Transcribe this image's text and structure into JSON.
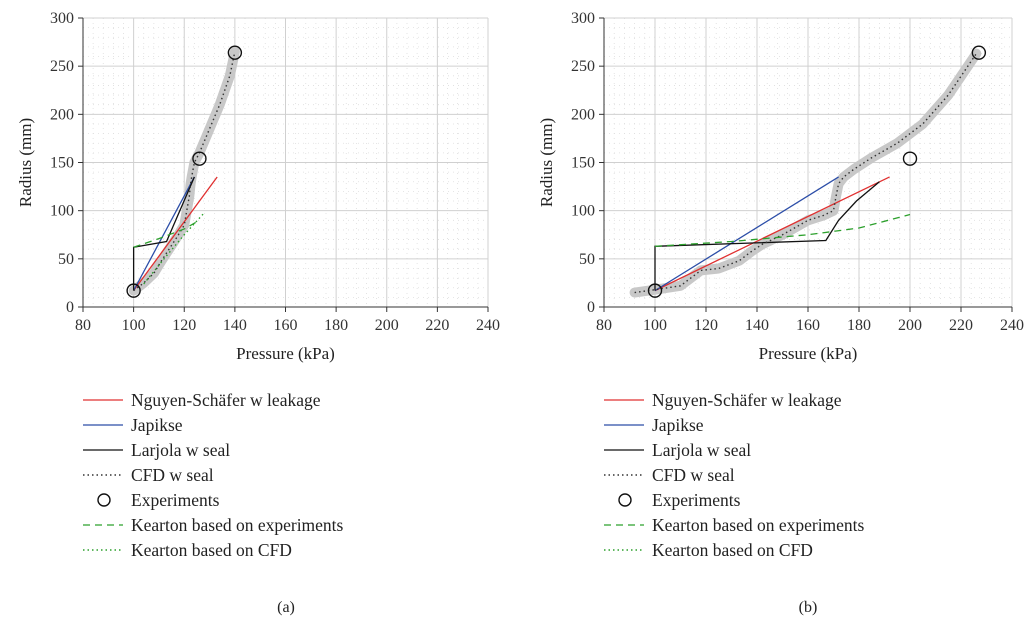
{
  "chart_data": [
    {
      "panel": "(a)",
      "type": "line",
      "xlabel": "Pressure (kPa)",
      "ylabel": "Radius (mm)",
      "xlim": [
        80,
        240
      ],
      "ylim": [
        0,
        300
      ],
      "xticks": [
        80,
        100,
        120,
        140,
        160,
        180,
        200,
        220,
        240
      ],
      "yticks": [
        0,
        50,
        100,
        150,
        200,
        250,
        300
      ],
      "grid": true,
      "legend_position": "below",
      "series": [
        {
          "name": "Nguyen-Schäfer w leakage",
          "style": "solid",
          "color": "#e03030",
          "x": [
            100,
            133
          ],
          "y": [
            17,
            135
          ]
        },
        {
          "name": "Japikse",
          "style": "solid",
          "color": "#2c4ea8",
          "x": [
            100,
            124
          ],
          "y": [
            17,
            135
          ]
        },
        {
          "name": "Larjola w seal",
          "style": "solid",
          "color": "#111111",
          "x": [
            100,
            100,
            113,
            124
          ],
          "y": [
            17,
            62,
            68,
            135
          ]
        },
        {
          "name": "CFD w seal",
          "style": "dotted",
          "color": "#333333",
          "x": [
            100,
            104,
            108,
            111,
            114,
            117,
            120,
            121,
            122,
            122.5,
            123,
            124,
            126,
            130,
            134,
            138,
            140
          ],
          "y": [
            17,
            25,
            35,
            48,
            60,
            72,
            85,
            100,
            115,
            128,
            136,
            150,
            160,
            185,
            210,
            240,
            265
          ]
        },
        {
          "name": "Experiments",
          "style": "marker",
          "color": "#111111",
          "x": [
            100,
            126,
            140
          ],
          "y": [
            17,
            154,
            264
          ]
        },
        {
          "name": "Kearton based on experiments",
          "style": "dashed",
          "color": "#2ca02c",
          "x": [
            100,
            110,
            120,
            126
          ],
          "y": [
            62,
            71,
            81,
            90
          ]
        },
        {
          "name": "Kearton based on CFD",
          "style": "dotted",
          "color": "#2ca02c",
          "x": [
            104,
            112,
            120,
            128
          ],
          "y": [
            24,
            50,
            75,
            98
          ]
        }
      ]
    },
    {
      "panel": "(b)",
      "type": "line",
      "xlabel": "Pressure (kPa)",
      "ylabel": "Radius (mm)",
      "xlim": [
        80,
        240
      ],
      "ylim": [
        0,
        300
      ],
      "xticks": [
        80,
        100,
        120,
        140,
        160,
        180,
        200,
        220,
        240
      ],
      "yticks": [
        0,
        50,
        100,
        150,
        200,
        250,
        300
      ],
      "grid": true,
      "legend_position": "below",
      "series": [
        {
          "name": "Nguyen-Schäfer w leakage",
          "style": "solid",
          "color": "#e03030",
          "x": [
            100,
            192
          ],
          "y": [
            17,
            135
          ]
        },
        {
          "name": "Japikse",
          "style": "solid",
          "color": "#2c4ea8",
          "x": [
            100,
            172
          ],
          "y": [
            17,
            135
          ]
        },
        {
          "name": "Larjola w seal",
          "style": "solid",
          "color": "#111111",
          "x": [
            100,
            100,
            167,
            172,
            179,
            188
          ],
          "y": [
            17,
            63,
            69,
            90,
            110,
            130
          ]
        },
        {
          "name": "CFD w seal",
          "style": "dotted",
          "color": "#333333",
          "x": [
            92,
            100,
            110,
            118,
            125,
            133,
            138,
            142,
            150,
            160,
            166,
            170,
            171,
            172,
            174,
            178,
            185,
            195,
            205,
            215,
            226
          ],
          "y": [
            15,
            18,
            22,
            38,
            40,
            48,
            58,
            65,
            75,
            90,
            95,
            100,
            115,
            128,
            135,
            143,
            155,
            170,
            190,
            220,
            263
          ]
        },
        {
          "name": "Experiments",
          "style": "marker",
          "color": "#111111",
          "x": [
            100,
            200,
            227
          ],
          "y": [
            17,
            154,
            264
          ]
        },
        {
          "name": "Kearton based on experiments",
          "style": "dashed",
          "color": "#2ca02c",
          "x": [
            100,
            130,
            160,
            180,
            200
          ],
          "y": [
            63,
            68,
            75,
            82,
            96
          ]
        },
        {
          "name": "Kearton based on CFD",
          "style": "dotted",
          "color": "#2ca02c",
          "x": [],
          "y": []
        }
      ]
    }
  ]
}
